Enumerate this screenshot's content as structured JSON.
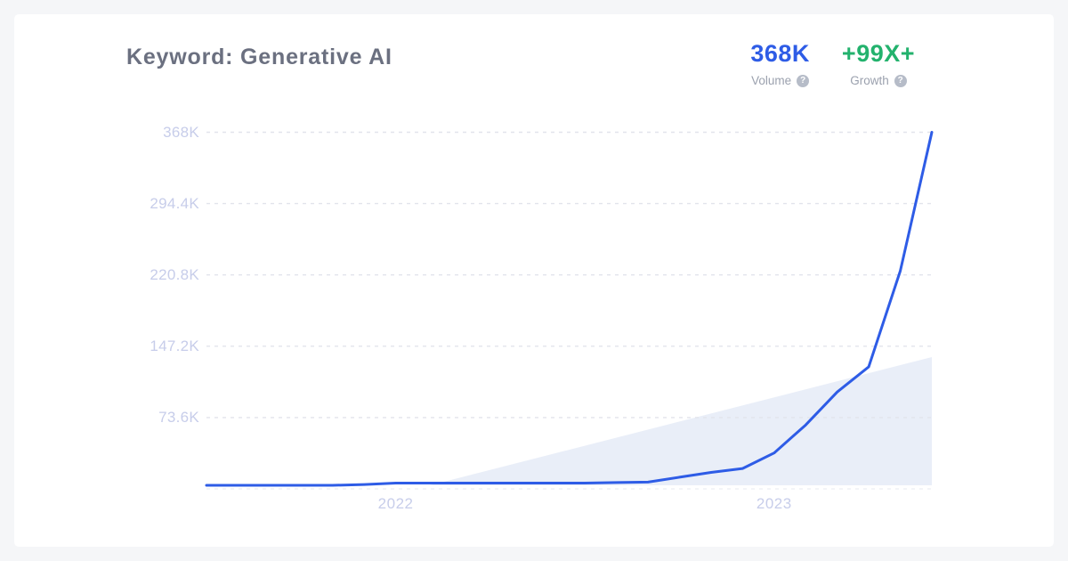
{
  "header": {
    "title": "Keyword: Generative AI",
    "stats": [
      {
        "id": "volume",
        "value": "368K",
        "label": "Volume",
        "help_icon": "?",
        "color": "#2e5ce6"
      },
      {
        "id": "growth",
        "value": "+99X+",
        "label": "Growth",
        "help_icon": "?",
        "color": "#23b26d"
      }
    ]
  },
  "colors": {
    "page_bg": "#f5f6f8",
    "card_bg": "#ffffff",
    "title": "#6b7080",
    "line": "#2e5ce6",
    "growth_green": "#23b26d",
    "grid": "#e2e4ec",
    "axis_label": "#c7cdea",
    "stat_label": "#9ba1ae",
    "help_icon_bg": "#b6bcc8",
    "wedge": "#e9eef8"
  },
  "chart_data": {
    "type": "line",
    "keyword": "Generative AI",
    "unit": "K searches/month",
    "x": [
      "2021-07",
      "2021-08",
      "2021-09",
      "2021-10",
      "2021-11",
      "2021-12",
      "2022-01",
      "2022-02",
      "2022-03",
      "2022-04",
      "2022-05",
      "2022-06",
      "2022-07",
      "2022-08",
      "2022-09",
      "2022-10",
      "2022-11",
      "2022-12",
      "2023-01",
      "2023-02",
      "2023-03",
      "2023-04",
      "2023-05",
      "2023-06"
    ],
    "values": [
      3.7,
      3.7,
      3.7,
      3.7,
      3.7,
      4.5,
      6,
      6,
      6,
      6,
      6,
      6,
      6,
      6.5,
      7,
      12,
      17,
      21,
      37,
      66,
      100,
      126,
      225,
      368
    ],
    "ylim": [
      0,
      368
    ],
    "yticks": [
      {
        "label": "368K",
        "value": 368
      },
      {
        "label": "294.4K",
        "value": 294.4
      },
      {
        "label": "220.8K",
        "value": 220.8
      },
      {
        "label": "147.2K",
        "value": 147.2
      },
      {
        "label": "73.6K",
        "value": 73.6
      },
      {
        "label": "",
        "value": 0
      }
    ],
    "xticks": [
      {
        "label": "2022",
        "index": 6
      },
      {
        "label": "2023",
        "index": 18
      }
    ],
    "grid": "horizontal-dashed",
    "legend": "none",
    "annotations": [
      "decorative light-blue growth wedge behind right half of line"
    ]
  }
}
